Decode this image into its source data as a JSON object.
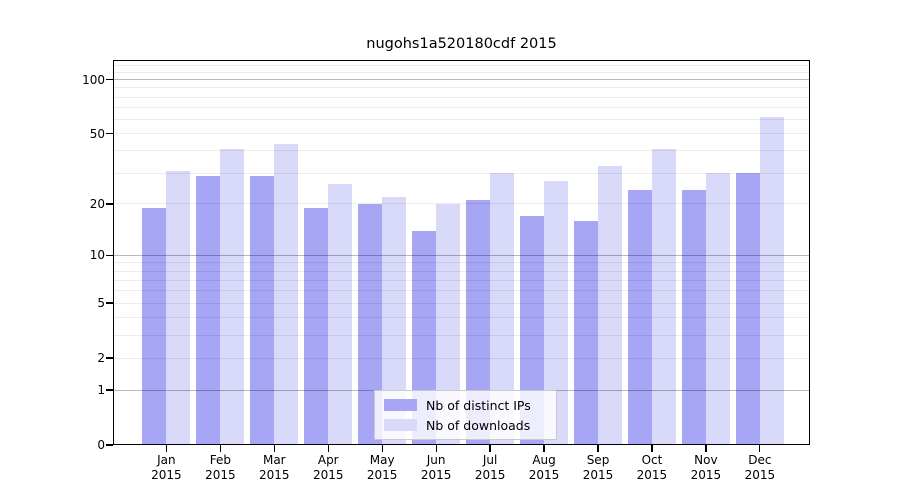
{
  "chart_data": {
    "type": "bar",
    "title": "nugohs1a520180cdf 2015",
    "scale": "log10(1+v)",
    "categories": [
      "Jan",
      "Feb",
      "Mar",
      "Apr",
      "May",
      "Jun",
      "Jul",
      "Aug",
      "Sep",
      "Oct",
      "Nov",
      "Dec"
    ],
    "year_label": "2015",
    "series": [
      {
        "name": "Nb of distinct IPs",
        "color": "#a6a6f5",
        "values": [
          19,
          29,
          29,
          19,
          20,
          14,
          21,
          17,
          16,
          24,
          24,
          30
        ]
      },
      {
        "name": "Nb of downloads",
        "color": "#d9d9fa",
        "values": [
          31,
          41,
          44,
          26,
          22,
          20,
          30,
          27,
          33,
          41,
          30,
          62
        ]
      }
    ],
    "y_ticks": [
      0,
      1,
      2,
      5,
      10,
      20,
      50,
      100
    ],
    "y_major_gridlines": [
      1,
      10,
      100
    ],
    "y_minor_gridlines": [
      2,
      3,
      4,
      5,
      6,
      7,
      8,
      9,
      20,
      30,
      40,
      50,
      60,
      70,
      80,
      90,
      110,
      120
    ],
    "ylim": [
      0,
      128.4
    ],
    "xlabel": "",
    "ylabel": "",
    "grid": "on",
    "legend_position": "lower center",
    "axis_color": "#000000",
    "background_color": "#ffffff"
  }
}
